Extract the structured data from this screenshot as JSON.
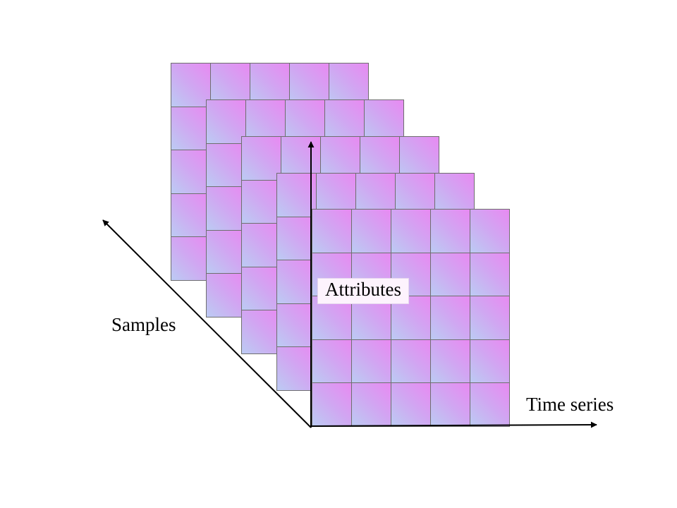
{
  "diagram": {
    "layers": 5,
    "rows": 5,
    "columns": 5,
    "cell_gradient": [
      "#e88af2",
      "#bccbf3"
    ],
    "line_color": "#6f6f6f",
    "axis_color": "#000000"
  },
  "labels": {
    "attributes": "Attributes",
    "samples": "Samples",
    "time_series": "Time series"
  }
}
